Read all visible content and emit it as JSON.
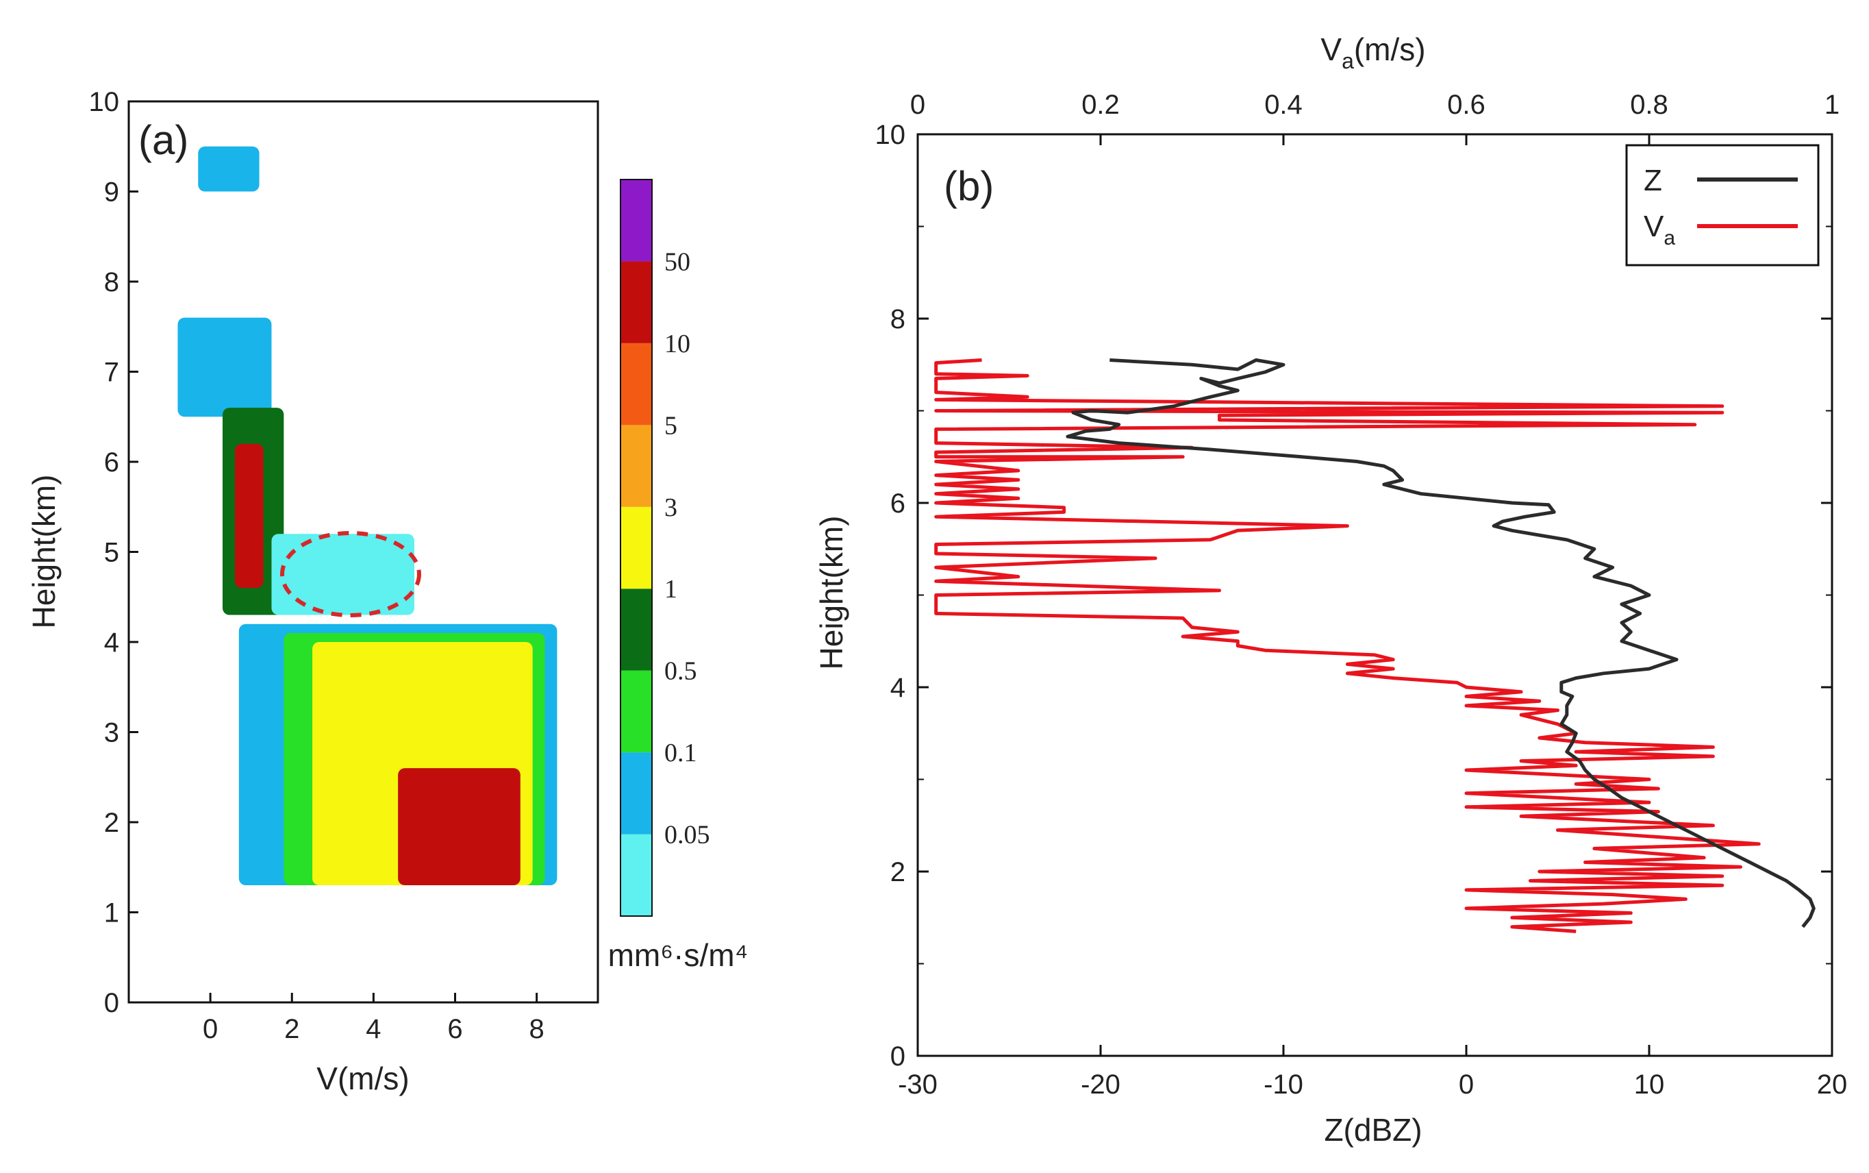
{
  "chart_data": [
    {
      "type": "heatmap",
      "panel_label": "(a)",
      "xlabel": "V(m/s)",
      "ylabel": "Height(km)",
      "xlim": [
        -2,
        9.5
      ],
      "ylim": [
        0,
        10
      ],
      "xticks": [
        "0",
        "2",
        "4",
        "6",
        "8"
      ],
      "yticks": [
        "0",
        "1",
        "2",
        "3",
        "4",
        "5",
        "6",
        "7",
        "8",
        "9",
        "10"
      ],
      "colorbar": {
        "unit": "mm⁶·s/m⁴",
        "levels": [
          "0.05",
          "0.1",
          "0.5",
          "1",
          "3",
          "5",
          "10",
          "50"
        ],
        "colors": [
          "#5ff0f0",
          "#19b4ea",
          "#27e027",
          "#0b6e16",
          "#f6f60e",
          "#f7a31c",
          "#f35b14",
          "#c20d0d",
          "#8e19c8"
        ]
      },
      "annotation": "dashed red ellipse centered near V=3.4 m/s, Height=4.8 km",
      "spectrum_regions": [
        {
          "name": "upper-patch",
          "h": [
            9.0,
            9.5
          ],
          "v": [
            -0.3,
            1.2
          ],
          "level_index": 1
        },
        {
          "name": "ice-layer",
          "h": [
            6.5,
            7.6
          ],
          "v": [
            -0.8,
            1.5
          ],
          "level_index": 1
        },
        {
          "name": "ice-core",
          "h": [
            4.3,
            6.6
          ],
          "v": [
            0.3,
            1.8
          ],
          "level_index": 3
        },
        {
          "name": "ice-peak",
          "h": [
            4.6,
            6.2
          ],
          "v": [
            0.6,
            1.3
          ],
          "level_index": 7
        },
        {
          "name": "melting-region",
          "h": [
            4.3,
            5.2
          ],
          "v": [
            1.5,
            5.0
          ],
          "level_index": 0
        },
        {
          "name": "rain-outer",
          "h": [
            1.3,
            4.2
          ],
          "v": [
            0.7,
            8.5
          ],
          "level_index": 1
        },
        {
          "name": "rain-mid",
          "h": [
            1.3,
            4.1
          ],
          "v": [
            1.8,
            8.2
          ],
          "level_index": 2
        },
        {
          "name": "rain-inner",
          "h": [
            1.3,
            4.0
          ],
          "v": [
            2.5,
            7.9
          ],
          "level_index": 4
        },
        {
          "name": "rain-peak",
          "h": [
            1.3,
            2.6
          ],
          "v": [
            4.6,
            7.6
          ],
          "level_index": 7
        }
      ]
    },
    {
      "type": "line",
      "panel_label": "(b)",
      "xlabel": "Z(dBZ)",
      "x2label": "Va(m/s)",
      "ylabel": "Height(km)",
      "xlim": [
        -30,
        20
      ],
      "x2lim": [
        0,
        1
      ],
      "ylim": [
        0,
        10
      ],
      "xticks": [
        "-30",
        "-20",
        "-10",
        "0",
        "10",
        "20"
      ],
      "x2ticks": [
        "0",
        "0.2",
        "0.4",
        "0.6",
        "0.8",
        "1"
      ],
      "yticks": [
        "0",
        "2",
        "4",
        "6",
        "8",
        "10"
      ],
      "legend": {
        "position": "top-right",
        "entries": [
          "Z",
          "Va"
        ]
      },
      "series": [
        {
          "name": "Z",
          "color": "#2b2b2b",
          "axis": "bottom",
          "points": [
            [
              -19.5,
              7.55
            ],
            [
              -15,
              7.5
            ],
            [
              -12.5,
              7.45
            ],
            [
              -11.5,
              7.55
            ],
            [
              -10,
              7.5
            ],
            [
              -11,
              7.42
            ],
            [
              -12.5,
              7.35
            ],
            [
              -13.5,
              7.3
            ],
            [
              -14.5,
              7.35
            ],
            [
              -13.5,
              7.27
            ],
            [
              -12.5,
              7.22
            ],
            [
              -14,
              7.15
            ],
            [
              -16,
              7.05
            ],
            [
              -18.5,
              6.98
            ],
            [
              -20.5,
              7.0
            ],
            [
              -21.5,
              6.98
            ],
            [
              -20.5,
              6.9
            ],
            [
              -19,
              6.85
            ],
            [
              -19.5,
              6.8
            ],
            [
              -20.8,
              6.78
            ],
            [
              -21.8,
              6.72
            ],
            [
              -19,
              6.65
            ],
            [
              -14,
              6.58
            ],
            [
              -9,
              6.5
            ],
            [
              -6,
              6.45
            ],
            [
              -4.5,
              6.4
            ],
            [
              -4,
              6.35
            ],
            [
              -3.5,
              6.25
            ],
            [
              -4.5,
              6.2
            ],
            [
              -2.5,
              6.1
            ],
            [
              0,
              6.05
            ],
            [
              2.5,
              6.0
            ],
            [
              4.5,
              5.98
            ],
            [
              4.8,
              5.9
            ],
            [
              3.2,
              5.85
            ],
            [
              2.0,
              5.8
            ],
            [
              1.5,
              5.75
            ],
            [
              2.5,
              5.7
            ],
            [
              4,
              5.65
            ],
            [
              5.5,
              5.6
            ],
            [
              7,
              5.5
            ],
            [
              6.5,
              5.4
            ],
            [
              8,
              5.3
            ],
            [
              7,
              5.2
            ],
            [
              9,
              5.1
            ],
            [
              10,
              5.0
            ],
            [
              8.5,
              4.9
            ],
            [
              9.5,
              4.8
            ],
            [
              8.5,
              4.7
            ],
            [
              9,
              4.6
            ],
            [
              8.5,
              4.5
            ],
            [
              10,
              4.4
            ],
            [
              11.5,
              4.3
            ],
            [
              10,
              4.2
            ],
            [
              7.5,
              4.15
            ],
            [
              6,
              4.1
            ],
            [
              5.2,
              4.05
            ],
            [
              5.2,
              3.95
            ],
            [
              5.8,
              3.9
            ],
            [
              5.5,
              3.8
            ],
            [
              5.5,
              3.7
            ],
            [
              5.2,
              3.6
            ],
            [
              6.0,
              3.5
            ],
            [
              5.8,
              3.4
            ],
            [
              5.5,
              3.3
            ],
            [
              6.2,
              3.2
            ],
            [
              6.5,
              3.1
            ],
            [
              7.0,
              3.0
            ],
            [
              7.8,
              2.9
            ],
            [
              8.5,
              2.8
            ],
            [
              9.5,
              2.7
            ],
            [
              10.5,
              2.6
            ],
            [
              11.5,
              2.5
            ],
            [
              12.5,
              2.4
            ],
            [
              13.5,
              2.3
            ],
            [
              14.5,
              2.2
            ],
            [
              15.5,
              2.1
            ],
            [
              16.5,
              2.0
            ],
            [
              17.5,
              1.9
            ],
            [
              18.2,
              1.8
            ],
            [
              18.8,
              1.7
            ],
            [
              19.0,
              1.6
            ],
            [
              18.8,
              1.5
            ],
            [
              18.4,
              1.4
            ]
          ]
        },
        {
          "name": "Va",
          "color": "#e8141e",
          "axis": "top",
          "points": [
            [
              0.07,
              7.55
            ],
            [
              0.02,
              7.52
            ],
            [
              0.02,
              7.4
            ],
            [
              0.12,
              7.38
            ],
            [
              0.02,
              7.35
            ],
            [
              0.02,
              7.2
            ],
            [
              0.12,
              7.15
            ],
            [
              0.02,
              7.12
            ],
            [
              0.88,
              7.05
            ],
            [
              0.02,
              7.0
            ],
            [
              0.88,
              6.98
            ],
            [
              0.33,
              6.95
            ],
            [
              0.33,
              6.9
            ],
            [
              0.85,
              6.85
            ],
            [
              0.02,
              6.8
            ],
            [
              0.02,
              6.65
            ],
            [
              0.3,
              6.6
            ],
            [
              0.02,
              6.55
            ],
            [
              0.02,
              6.5
            ],
            [
              0.29,
              6.5
            ],
            [
              0.02,
              6.45
            ],
            [
              0.11,
              6.35
            ],
            [
              0.02,
              6.3
            ],
            [
              0.11,
              6.25
            ],
            [
              0.02,
              6.2
            ],
            [
              0.11,
              6.15
            ],
            [
              0.02,
              6.1
            ],
            [
              0.11,
              6.05
            ],
            [
              0.02,
              6.0
            ],
            [
              0.16,
              5.95
            ],
            [
              0.16,
              5.9
            ],
            [
              0.02,
              5.85
            ],
            [
              0.47,
              5.75
            ],
            [
              0.35,
              5.7
            ],
            [
              0.32,
              5.6
            ],
            [
              0.02,
              5.55
            ],
            [
              0.02,
              5.45
            ],
            [
              0.26,
              5.4
            ],
            [
              0.02,
              5.3
            ],
            [
              0.11,
              5.2
            ],
            [
              0.02,
              5.15
            ],
            [
              0.33,
              5.05
            ],
            [
              0.02,
              5.0
            ],
            [
              0.02,
              4.8
            ],
            [
              0.29,
              4.75
            ],
            [
              0.3,
              4.65
            ],
            [
              0.35,
              4.6
            ],
            [
              0.29,
              4.55
            ],
            [
              0.35,
              4.5
            ],
            [
              0.35,
              4.45
            ],
            [
              0.38,
              4.4
            ],
            [
              0.5,
              4.35
            ],
            [
              0.52,
              4.3
            ],
            [
              0.47,
              4.25
            ],
            [
              0.52,
              4.2
            ],
            [
              0.47,
              4.15
            ],
            [
              0.52,
              4.1
            ],
            [
              0.59,
              4.05
            ],
            [
              0.6,
              4.0
            ],
            [
              0.66,
              3.95
            ],
            [
              0.6,
              3.9
            ],
            [
              0.68,
              3.85
            ],
            [
              0.6,
              3.8
            ],
            [
              0.7,
              3.75
            ],
            [
              0.66,
              3.7
            ],
            [
              0.7,
              3.6
            ],
            [
              0.72,
              3.5
            ],
            [
              0.68,
              3.45
            ],
            [
              0.73,
              3.4
            ],
            [
              0.87,
              3.35
            ],
            [
              0.72,
              3.3
            ],
            [
              0.87,
              3.25
            ],
            [
              0.66,
              3.2
            ],
            [
              0.72,
              3.15
            ],
            [
              0.6,
              3.1
            ],
            [
              0.7,
              3.05
            ],
            [
              0.8,
              3.0
            ],
            [
              0.72,
              2.95
            ],
            [
              0.81,
              2.9
            ],
            [
              0.6,
              2.85
            ],
            [
              0.8,
              2.75
            ],
            [
              0.6,
              2.7
            ],
            [
              0.81,
              2.65
            ],
            [
              0.66,
              2.6
            ],
            [
              0.87,
              2.5
            ],
            [
              0.7,
              2.45
            ],
            [
              0.92,
              2.3
            ],
            [
              0.74,
              2.25
            ],
            [
              0.86,
              2.15
            ],
            [
              0.73,
              2.1
            ],
            [
              0.9,
              2.05
            ],
            [
              0.68,
              2.0
            ],
            [
              0.88,
              1.95
            ],
            [
              0.67,
              1.9
            ],
            [
              0.88,
              1.85
            ],
            [
              0.6,
              1.8
            ],
            [
              0.76,
              1.75
            ],
            [
              0.84,
              1.7
            ],
            [
              0.75,
              1.65
            ],
            [
              0.6,
              1.6
            ],
            [
              0.78,
              1.55
            ],
            [
              0.65,
              1.5
            ],
            [
              0.78,
              1.45
            ],
            [
              0.65,
              1.4
            ],
            [
              0.72,
              1.35
            ]
          ]
        }
      ]
    }
  ]
}
